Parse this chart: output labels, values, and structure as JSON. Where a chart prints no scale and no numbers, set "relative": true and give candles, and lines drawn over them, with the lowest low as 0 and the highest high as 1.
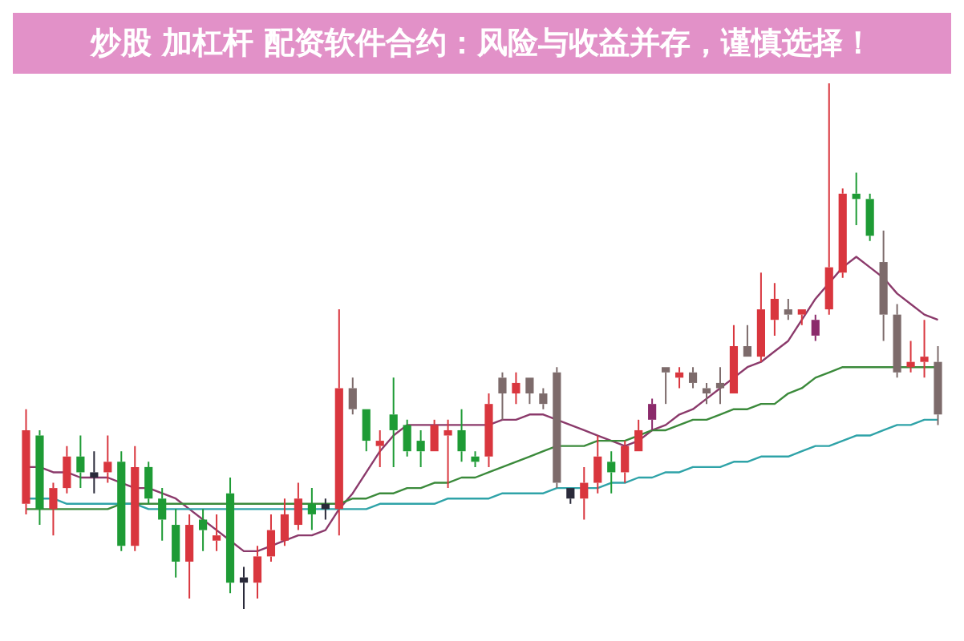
{
  "chart_data": {
    "type": "candlestick",
    "title": "炒股 加杠杆 配资软件合约：风险与收益并存，谨慎选择！",
    "relative": true,
    "categories": [
      null,
      null,
      null,
      null,
      null,
      null,
      null,
      null,
      null,
      null,
      null,
      null,
      null,
      null,
      null,
      null,
      null,
      null,
      null,
      null,
      null,
      null,
      null,
      null,
      null,
      null,
      null,
      null,
      null,
      null,
      null,
      null,
      null,
      null,
      null,
      null,
      null,
      null,
      null,
      null,
      null,
      null,
      null,
      null,
      null,
      null,
      null,
      null,
      null,
      null,
      null,
      null,
      null,
      null,
      null,
      null,
      null,
      null,
      null,
      null,
      null,
      null,
      null,
      null,
      null,
      null,
      null,
      null
    ],
    "ohlc": [
      [
        0.2,
        0.38,
        0.18,
        0.34
      ],
      [
        0.33,
        0.34,
        0.16,
        0.19
      ],
      [
        0.19,
        0.24,
        0.14,
        0.23
      ],
      [
        0.23,
        0.31,
        0.22,
        0.29
      ],
      [
        0.29,
        0.33,
        0.23,
        0.26
      ],
      [
        0.26,
        0.3,
        0.22,
        0.25
      ],
      [
        0.26,
        0.33,
        0.24,
        0.28
      ],
      [
        0.28,
        0.3,
        0.11,
        0.12
      ],
      [
        0.12,
        0.31,
        0.11,
        0.27
      ],
      [
        0.27,
        0.28,
        0.2,
        0.21
      ],
      [
        0.21,
        0.23,
        0.13,
        0.17
      ],
      [
        0.16,
        0.19,
        0.06,
        0.09
      ],
      [
        0.09,
        0.18,
        0.02,
        0.16
      ],
      [
        0.17,
        0.19,
        0.11,
        0.15
      ],
      [
        0.13,
        0.18,
        0.11,
        0.14
      ],
      [
        0.22,
        0.25,
        0.03,
        0.05
      ],
      [
        0.06,
        0.08,
        0,
        0.05
      ],
      [
        0.05,
        0.12,
        0.02,
        0.1
      ],
      [
        0.1,
        0.18,
        0.09,
        0.15
      ],
      [
        0.13,
        0.21,
        0.12,
        0.18
      ],
      [
        0.16,
        0.24,
        0.15,
        0.21
      ],
      [
        0.2,
        0.23,
        0.15,
        0.18
      ],
      [
        0.2,
        0.21,
        0.17,
        0.19
      ],
      [
        0.19,
        0.57,
        0.14,
        0.42
      ],
      [
        0.42,
        0.44,
        0.37,
        0.38
      ],
      [
        0.38,
        0.38,
        0.3,
        0.32
      ],
      [
        0.31,
        0.34,
        0.27,
        0.32
      ],
      [
        0.37,
        0.44,
        0.27,
        0.34
      ],
      [
        0.35,
        0.36,
        0.29,
        0.3
      ],
      [
        0.32,
        0.34,
        0.27,
        0.3
      ],
      [
        0.3,
        0.36,
        0.3,
        0.35
      ],
      [
        0.33,
        0.36,
        0.23,
        0.34
      ],
      [
        0.34,
        0.38,
        0.28,
        0.3
      ],
      [
        0.29,
        0.3,
        0.27,
        0.28
      ],
      [
        0.29,
        0.41,
        0.27,
        0.39
      ],
      [
        0.44,
        0.45,
        0.36,
        0.41
      ],
      [
        0.41,
        0.45,
        0.39,
        0.43
      ],
      [
        0.44,
        0.44,
        0.39,
        0.41
      ],
      [
        0.41,
        0.42,
        0.38,
        0.39
      ],
      [
        0.45,
        0.46,
        0.23,
        0.24
      ],
      [
        0.23,
        0.23,
        0.2,
        0.21
      ],
      [
        0.21,
        0.27,
        0.17,
        0.24
      ],
      [
        0.24,
        0.33,
        0.22,
        0.29
      ],
      [
        0.28,
        0.3,
        0.22,
        0.26
      ],
      [
        0.26,
        0.32,
        0.24,
        0.31
      ],
      [
        0.3,
        0.36,
        0.3,
        0.34
      ],
      [
        0.36,
        0.4,
        0.34,
        0.39
      ],
      [
        0.46,
        0.46,
        0.39,
        0.45
      ],
      [
        0.44,
        0.46,
        0.42,
        0.45
      ],
      [
        0.45,
        0.46,
        0.42,
        0.43
      ],
      [
        0.42,
        0.43,
        0.39,
        0.41
      ],
      [
        0.43,
        0.46,
        0.39,
        0.42
      ],
      [
        0.41,
        0.54,
        0.41,
        0.5
      ],
      [
        0.5,
        0.54,
        0.48,
        0.48
      ],
      [
        0.48,
        0.64,
        0.47,
        0.57
      ],
      [
        0.55,
        0.62,
        0.52,
        0.59
      ],
      [
        0.57,
        0.59,
        0.55,
        0.56
      ],
      [
        0.56,
        0.57,
        0.54,
        0.57
      ],
      [
        0.55,
        0.56,
        0.51,
        0.52
      ],
      [
        0.57,
        1,
        0.56,
        0.65
      ],
      [
        0.64,
        0.8,
        0.63,
        0.79
      ],
      [
        0.79,
        0.83,
        0.73,
        0.78
      ],
      [
        0.78,
        0.79,
        0.7,
        0.71
      ],
      [
        0.66,
        0.72,
        0.51,
        0.56
      ],
      [
        0.56,
        0.58,
        0.44,
        0.45
      ],
      [
        0.46,
        0.51,
        0.45,
        0.47
      ],
      [
        0.47,
        0.55,
        0.44,
        0.48
      ],
      [
        0.47,
        0.5,
        0.35,
        0.37
      ]
    ],
    "colors": [
      "#d9363e",
      "#1e9b35",
      "#d9363e",
      "#d9363e",
      "#1e9b35",
      "#2a2a3a",
      "#d9363e",
      "#1e9b35",
      "#d9363e",
      "#1e9b35",
      "#1e9b35",
      "#1e9b35",
      "#d9363e",
      "#1e9b35",
      "#d9363e",
      "#1e9b35",
      "#2a2a3a",
      "#d9363e",
      "#d9363e",
      "#d9363e",
      "#d9363e",
      "#1e9b35",
      "#2a2a3a",
      "#d9363e",
      "#7d6b6b",
      "#1e9b35",
      "#d9363e",
      "#1e9b35",
      "#1e9b35",
      "#1e9b35",
      "#d9363e",
      "#d9363e",
      "#1e9b35",
      "#1e9b35",
      "#d9363e",
      "#7d6b6b",
      "#d9363e",
      "#7d6b6b",
      "#7d6b6b",
      "#7d6b6b",
      "#2a2a3a",
      "#d9363e",
      "#d9363e",
      "#1e9b35",
      "#d9363e",
      "#d9363e",
      "#8b2a6b",
      "#7d6b6b",
      "#d9363e",
      "#7d6b6b",
      "#7d6b6b",
      "#7d6b6b",
      "#d9363e",
      "#7d6b6b",
      "#d9363e",
      "#d9363e",
      "#7d6b6b",
      "#d9363e",
      "#8b2a6b",
      "#d9363e",
      "#d9363e",
      "#1e9b35",
      "#1e9b35",
      "#7d6b6b",
      "#7d6b6b",
      "#d9363e",
      "#d9363e",
      "#7d6b6b"
    ],
    "series": [
      {
        "type": "line",
        "color": "#2fa3a8",
        "values": [
          0.21,
          0.21,
          0.21,
          0.2,
          0.2,
          0.2,
          0.2,
          0.2,
          0.2,
          0.19,
          0.19,
          0.19,
          0.19,
          0.19,
          0.19,
          0.19,
          0.19,
          0.19,
          0.19,
          0.19,
          0.19,
          0.19,
          0.19,
          0.19,
          0.19,
          0.19,
          0.2,
          0.2,
          0.2,
          0.2,
          0.2,
          0.21,
          0.21,
          0.21,
          0.21,
          0.22,
          0.22,
          0.22,
          0.22,
          0.23,
          0.23,
          0.23,
          0.23,
          0.24,
          0.24,
          0.25,
          0.25,
          0.26,
          0.26,
          0.27,
          0.27,
          0.27,
          0.28,
          0.28,
          0.29,
          0.29,
          0.29,
          0.3,
          0.31,
          0.31,
          0.32,
          0.33,
          0.33,
          0.34,
          0.35,
          0.35,
          0.36,
          0.36
        ]
      },
      {
        "type": "line",
        "color": "#3b8a3b",
        "values": [
          0.19,
          0.19,
          0.19,
          0.19,
          0.19,
          0.19,
          0.19,
          0.2,
          0.2,
          0.2,
          0.2,
          0.2,
          0.2,
          0.2,
          0.2,
          0.2,
          0.2,
          0.2,
          0.2,
          0.2,
          0.2,
          0.2,
          0.2,
          0.2,
          0.21,
          0.21,
          0.22,
          0.22,
          0.23,
          0.23,
          0.24,
          0.24,
          0.25,
          0.25,
          0.26,
          0.27,
          0.28,
          0.29,
          0.3,
          0.31,
          0.31,
          0.31,
          0.32,
          0.32,
          0.32,
          0.33,
          0.34,
          0.34,
          0.35,
          0.36,
          0.36,
          0.37,
          0.38,
          0.38,
          0.39,
          0.39,
          0.41,
          0.42,
          0.44,
          0.45,
          0.46,
          0.46,
          0.46,
          0.46,
          0.46,
          0.46,
          0.46,
          0.46
        ]
      },
      {
        "type": "line",
        "color": "#8b3a6b",
        "values": [
          0.27,
          0.27,
          0.26,
          0.26,
          0.25,
          0.25,
          0.25,
          0.24,
          0.23,
          0.23,
          0.22,
          0.21,
          0.19,
          0.17,
          0.15,
          0.13,
          0.11,
          0.11,
          0.12,
          0.13,
          0.14,
          0.14,
          0.15,
          0.19,
          0.22,
          0.26,
          0.3,
          0.33,
          0.35,
          0.35,
          0.35,
          0.35,
          0.35,
          0.35,
          0.35,
          0.36,
          0.36,
          0.37,
          0.37,
          0.36,
          0.35,
          0.34,
          0.33,
          0.32,
          0.31,
          0.32,
          0.34,
          0.35,
          0.37,
          0.38,
          0.4,
          0.42,
          0.44,
          0.46,
          0.47,
          0.49,
          0.51,
          0.55,
          0.59,
          0.62,
          0.65,
          0.67,
          0.65,
          0.63,
          0.6,
          0.58,
          0.56,
          0.55
        ]
      }
    ]
  }
}
